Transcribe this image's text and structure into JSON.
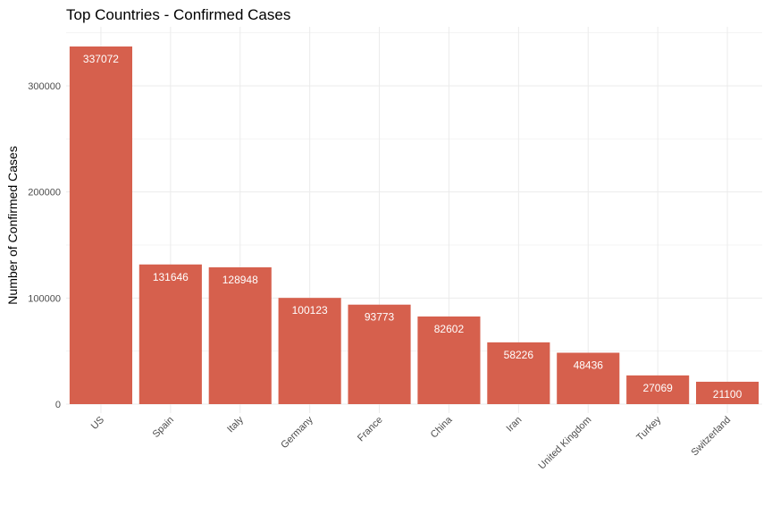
{
  "chart_data": {
    "type": "bar",
    "title": "Top Countries - Confirmed Cases",
    "xlabel": "",
    "ylabel": "Number of Confirmed Cases",
    "categories": [
      "US",
      "Spain",
      "Italy",
      "Germany",
      "France",
      "China",
      "Iran",
      "United Kingdom",
      "Turkey",
      "Switzerland"
    ],
    "values": [
      337072,
      131646,
      128948,
      100123,
      93773,
      82602,
      58226,
      48436,
      27069,
      21100
    ],
    "data_labels": [
      "337072",
      "131646",
      "128948",
      "100123",
      "93773",
      "82602",
      "58226",
      "48436",
      "27069",
      "21100"
    ],
    "y_ticks": [
      0,
      100000,
      200000,
      300000
    ],
    "y_tick_labels": [
      "0",
      "100000",
      "200000",
      "300000"
    ],
    "ylim": [
      0,
      350000
    ],
    "grid": true,
    "legend": "none",
    "bar_color": "#d6604d"
  }
}
